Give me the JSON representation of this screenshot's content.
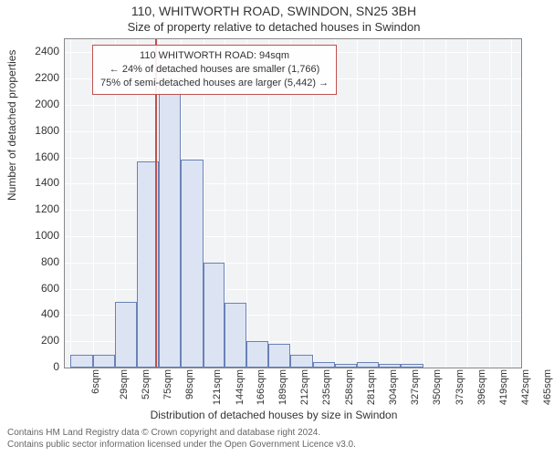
{
  "title_line1": "110, WHITWORTH ROAD, SWINDON, SN25 3BH",
  "title_line2": "Size of property relative to detached houses in Swindon",
  "ylabel": "Number of detached properties",
  "xlabel": "Distribution of detached houses by size in Swindon",
  "footer_line1": "Contains HM Land Registry data © Crown copyright and database right 2024.",
  "footer_line2": "Contains public sector information licensed under the Open Government Licence v3.0.",
  "chart": {
    "type": "histogram",
    "background_color": "#f2f3f4",
    "grid_color": "#ffffff",
    "bar_fill": "#dce4f4",
    "bar_border": "#6a82b5",
    "ref_line_color": "#c05050",
    "ref_value": 94,
    "ylim": [
      0,
      2500
    ],
    "ytick_step": 200,
    "yticks": [
      0,
      200,
      400,
      600,
      800,
      1000,
      1200,
      1400,
      1600,
      1800,
      2000,
      2200,
      2400
    ],
    "xticks": [
      "6sqm",
      "29sqm",
      "52sqm",
      "75sqm",
      "98sqm",
      "121sqm",
      "144sqm",
      "166sqm",
      "189sqm",
      "212sqm",
      "235sqm",
      "258sqm",
      "281sqm",
      "304sqm",
      "327sqm",
      "350sqm",
      "373sqm",
      "396sqm",
      "419sqm",
      "442sqm",
      "465sqm"
    ],
    "xtick_values": [
      6,
      29,
      52,
      75,
      98,
      121,
      144,
      166,
      189,
      212,
      235,
      258,
      281,
      304,
      327,
      350,
      373,
      396,
      419,
      442,
      465
    ],
    "xlim": [
      0,
      475
    ],
    "bars": [
      {
        "x0": 6,
        "x1": 29,
        "y": 100
      },
      {
        "x0": 29,
        "x1": 52,
        "y": 100
      },
      {
        "x0": 52,
        "x1": 75,
        "y": 500
      },
      {
        "x0": 75,
        "x1": 98,
        "y": 1570
      },
      {
        "x0": 98,
        "x1": 121,
        "y": 2200
      },
      {
        "x0": 121,
        "x1": 144,
        "y": 1580
      },
      {
        "x0": 144,
        "x1": 166,
        "y": 800
      },
      {
        "x0": 166,
        "x1": 189,
        "y": 490
      },
      {
        "x0": 189,
        "x1": 212,
        "y": 200
      },
      {
        "x0": 212,
        "x1": 235,
        "y": 180
      },
      {
        "x0": 235,
        "x1": 258,
        "y": 100
      },
      {
        "x0": 258,
        "x1": 281,
        "y": 40
      },
      {
        "x0": 281,
        "x1": 304,
        "y": 30
      },
      {
        "x0": 304,
        "x1": 327,
        "y": 40
      },
      {
        "x0": 327,
        "x1": 350,
        "y": 30
      },
      {
        "x0": 350,
        "x1": 373,
        "y": 30
      }
    ]
  },
  "info_box": {
    "line1": "110 WHITWORTH ROAD: 94sqm",
    "line2": "← 24% of detached houses are smaller (1,766)",
    "line3": "75% of semi-detached houses are larger (5,442) →"
  }
}
